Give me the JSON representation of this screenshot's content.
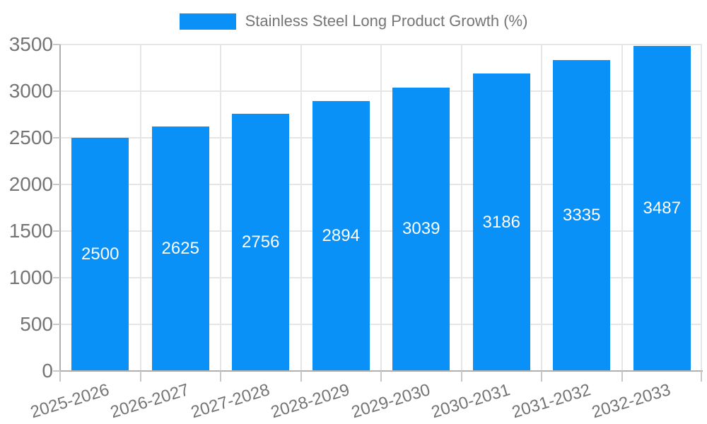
{
  "chart_data": {
    "type": "bar",
    "title": "Stainless Steel Long Product Growth (%)",
    "legend_position": "top",
    "categories": [
      "2025-2026",
      "2026-2027",
      "2027-2028",
      "2028-2029",
      "2029-2030",
      "2030-2031",
      "2031-2032",
      "2032-2033"
    ],
    "values": [
      2500,
      2625,
      2756,
      2894,
      3039,
      3186,
      3335,
      3487
    ],
    "series": [
      {
        "name": "Stainless Steel Long Product Growth (%)",
        "values": [
          2500,
          2625,
          2756,
          2894,
          3039,
          3186,
          3335,
          3487
        ]
      }
    ],
    "xlabel": "",
    "ylabel": "",
    "ylim": [
      0,
      3500
    ],
    "yticks": [
      0,
      500,
      1000,
      1500,
      2000,
      2500,
      3000,
      3500
    ],
    "grid": true,
    "x_label_rotation_deg": -17,
    "colors": {
      "bar": "#0991f7",
      "gridline": "#e6e6e6",
      "axis_line": "#b0b0b0",
      "tick": "#c8c8c8",
      "axis_text": "#757575",
      "value_label_text": "#ffffff",
      "background": "#ffffff"
    }
  }
}
